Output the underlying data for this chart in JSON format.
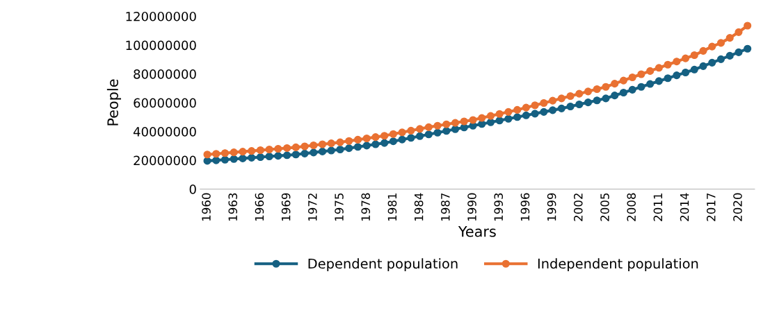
{
  "chart_data": {
    "type": "line",
    "xlabel": "Years",
    "ylabel": "People",
    "categories": [
      "1960",
      null,
      null,
      "1963",
      null,
      null,
      "1966",
      null,
      null,
      "1969",
      null,
      null,
      "1972",
      null,
      null,
      "1975",
      null,
      null,
      "1978",
      null,
      null,
      "1981",
      null,
      null,
      "1984",
      null,
      null,
      "1987",
      null,
      null,
      "1990",
      null,
      null,
      "1993",
      null,
      null,
      "1996",
      null,
      null,
      "1999",
      null,
      null,
      "2002",
      null,
      null,
      "2005",
      null,
      null,
      "2008",
      null,
      null,
      "2011",
      null,
      null,
      "2014",
      null,
      null,
      "2017",
      null,
      null,
      "2020",
      null
    ],
    "series": [
      {
        "name": "Dependent population",
        "color": "#156082",
        "values": [
          19600000,
          20000000,
          20400000,
          20900000,
          21300000,
          21800000,
          22200000,
          22700000,
          23100000,
          23500000,
          24000000,
          24700000,
          25400000,
          26100000,
          26800000,
          27500000,
          28400000,
          29300000,
          30200000,
          31100000,
          32000000,
          33200000,
          34400000,
          35600000,
          36800000,
          38000000,
          39200000,
          40400000,
          41600000,
          42800000,
          44000000,
          45200000,
          46400000,
          47600000,
          48800000,
          50000000,
          51200000,
          52400000,
          53600000,
          54800000,
          56000000,
          57400000,
          58800000,
          60200000,
          61600000,
          63000000,
          65000000,
          67000000,
          69000000,
          71000000,
          73000000,
          75000000,
          77000000,
          79000000,
          81000000,
          83000000,
          85400000,
          87800000,
          90200000,
          92600000,
          95000000,
          97500000
        ]
      },
      {
        "name": "Independent population",
        "color": "#e97132",
        "values": [
          24000000,
          24500000,
          25000000,
          25500000,
          26000000,
          26500000,
          27000000,
          27500000,
          28000000,
          28500000,
          29000000,
          29700000,
          30400000,
          31100000,
          31800000,
          32500000,
          33400000,
          34300000,
          35200000,
          36100000,
          37000000,
          38200000,
          39400000,
          40600000,
          41800000,
          43000000,
          44000000,
          45000000,
          46000000,
          47000000,
          48000000,
          49400000,
          50800000,
          52200000,
          53600000,
          55000000,
          56600000,
          58200000,
          59800000,
          61400000,
          63000000,
          64600000,
          66200000,
          67800000,
          69400000,
          71000000,
          73200000,
          75400000,
          77600000,
          79800000,
          82000000,
          84200000,
          86400000,
          88600000,
          90800000,
          93000000,
          96000000,
          99000000,
          101500000,
          105000000,
          109000000,
          113500000
        ]
      }
    ],
    "ylim": [
      0,
      120000000
    ],
    "yticks": [
      0,
      20000000,
      40000000,
      60000000,
      80000000,
      100000000,
      120000000
    ],
    "legend": "bottom",
    "marker": "circle",
    "line_style": "solid",
    "grid": false
  }
}
